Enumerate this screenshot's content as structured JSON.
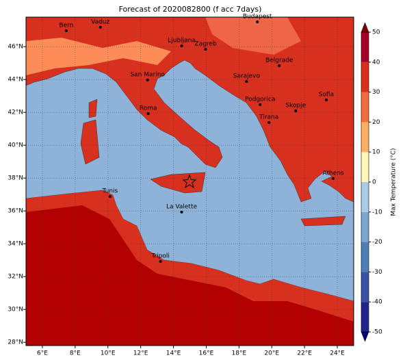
{
  "title": "Forecast of 2020082800 (f acc 7days)",
  "map": {
    "xlim": [
      5,
      25
    ],
    "ylim": [
      27.8,
      47.8
    ],
    "xticks": [
      {
        "value": 6,
        "label": "6°E"
      },
      {
        "value": 8,
        "label": "8°E"
      },
      {
        "value": 10,
        "label": "10°E"
      },
      {
        "value": 12,
        "label": "12°E"
      },
      {
        "value": 14,
        "label": "14°E"
      },
      {
        "value": 16,
        "label": "16°E"
      },
      {
        "value": 18,
        "label": "18°E"
      },
      {
        "value": 20,
        "label": "20°E"
      },
      {
        "value": 22,
        "label": "22°E"
      },
      {
        "value": 24,
        "label": "24°E"
      }
    ],
    "yticks": [
      {
        "value": 28,
        "label": "28°N"
      },
      {
        "value": 30,
        "label": "30°N"
      },
      {
        "value": 32,
        "label": "32°N"
      },
      {
        "value": 34,
        "label": "34°N"
      },
      {
        "value": 36,
        "label": "36°N"
      },
      {
        "value": 38,
        "label": "38°N"
      },
      {
        "value": 40,
        "label": "40°N"
      },
      {
        "value": 42,
        "label": "42°N"
      },
      {
        "value": 44,
        "label": "44°N"
      },
      {
        "value": 46,
        "label": "46°N"
      }
    ],
    "grid": true,
    "cities": [
      {
        "name": "Bern",
        "lon": 7.46,
        "lat": 46.97
      },
      {
        "name": "Vaduz",
        "lon": 9.54,
        "lat": 47.18
      },
      {
        "name": "Budapest",
        "lon": 19.12,
        "lat": 47.51
      },
      {
        "name": "Ljubljana",
        "lon": 14.5,
        "lat": 46.05
      },
      {
        "name": "Zagreb",
        "lon": 15.96,
        "lat": 45.84
      },
      {
        "name": "Belgrade",
        "lon": 20.46,
        "lat": 44.84
      },
      {
        "name": "Sarajevo",
        "lon": 18.46,
        "lat": 43.88
      },
      {
        "name": "San Marino",
        "lon": 12.42,
        "lat": 43.97
      },
      {
        "name": "Podgorica",
        "lon": 19.29,
        "lat": 42.47
      },
      {
        "name": "Sofia",
        "lon": 23.33,
        "lat": 42.76
      },
      {
        "name": "Skopje",
        "lon": 21.46,
        "lat": 42.09
      },
      {
        "name": "Roma",
        "lon": 12.46,
        "lat": 41.92
      },
      {
        "name": "Tirana",
        "lon": 19.83,
        "lat": 41.38
      },
      {
        "name": "Athens",
        "lon": 23.75,
        "lat": 37.97
      },
      {
        "name": "Tunis",
        "lon": 10.13,
        "lat": 36.88
      },
      {
        "name": "La Valette",
        "lon": 14.5,
        "lat": 35.93
      },
      {
        "name": "Tripoli",
        "lon": 13.21,
        "lat": 32.92
      }
    ]
  },
  "colorbar": {
    "label": "Max Temperature (°C)",
    "lim": [
      -50,
      50
    ],
    "ticks": [
      -50,
      -40,
      -30,
      -20,
      -10,
      0,
      10,
      20,
      30,
      40,
      50
    ],
    "colors": [
      "#23238e",
      "#3a53a4",
      "#4f7fb8",
      "#7aa6cf",
      "#a9cbe3",
      "#e0f3f8",
      "#fff7bc",
      "#fdae61",
      "#ef6d3b",
      "#d7301f",
      "#a50026"
    ]
  }
}
